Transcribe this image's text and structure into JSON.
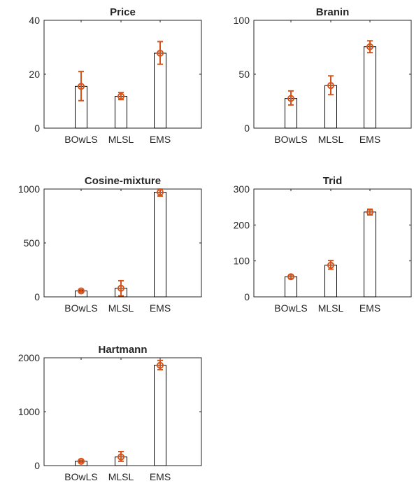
{
  "chart_data": [
    {
      "type": "bar",
      "title": "Price",
      "categories": [
        "BOwLS",
        "MLSL",
        "EMS"
      ],
      "values": [
        15.5,
        11.8,
        27.8
      ],
      "error_lower": [
        10.2,
        10.6,
        23.7
      ],
      "error_upper": [
        21.0,
        13.2,
        32.1
      ],
      "ylim": [
        0,
        40
      ],
      "yticks": [
        0,
        20,
        40
      ],
      "ytick_labels": [
        "0",
        "20",
        "40"
      ]
    },
    {
      "type": "bar",
      "title": "Branin",
      "categories": [
        "BOwLS",
        "MLSL",
        "EMS"
      ],
      "values": [
        27.5,
        39.5,
        75.5
      ],
      "error_lower": [
        21.5,
        31.0,
        70.0
      ],
      "error_upper": [
        34.5,
        48.5,
        81.0
      ],
      "ylim": [
        0,
        100
      ],
      "yticks": [
        0,
        50,
        100
      ],
      "ytick_labels": [
        "0",
        "50",
        "100"
      ]
    },
    {
      "type": "bar",
      "title": "Cosine-mixture",
      "categories": [
        "BOwLS",
        "MLSL",
        "EMS"
      ],
      "values": [
        55,
        80,
        970
      ],
      "error_lower": [
        45,
        10,
        935
      ],
      "error_upper": [
        65,
        150,
        1000
      ],
      "ylim": [
        0,
        1000
      ],
      "yticks": [
        0,
        500,
        1000
      ],
      "ytick_labels": [
        "0",
        "500",
        "1000"
      ]
    },
    {
      "type": "bar",
      "title": "Trid",
      "categories": [
        "BOwLS",
        "MLSL",
        "EMS"
      ],
      "values": [
        56,
        88,
        236
      ],
      "error_lower": [
        51,
        77,
        228
      ],
      "error_upper": [
        61,
        101,
        244
      ],
      "ylim": [
        0,
        300
      ],
      "yticks": [
        0,
        100,
        200,
        300
      ],
      "ytick_labels": [
        "0",
        "100",
        "200",
        "300"
      ]
    },
    {
      "type": "bar",
      "title": "Hartmann",
      "categories": [
        "BOwLS",
        "MLSL",
        "EMS"
      ],
      "values": [
        80,
        160,
        1860
      ],
      "error_lower": [
        60,
        80,
        1780
      ],
      "error_upper": [
        100,
        260,
        1950
      ],
      "ylim": [
        0,
        2000
      ],
      "yticks": [
        0,
        1000,
        2000
      ],
      "ytick_labels": [
        "0",
        "1000",
        "2000"
      ]
    }
  ],
  "colors": {
    "bar_fill": "#ffffff",
    "bar_edge": "#000000",
    "marker": "#d95319",
    "axes": "#262626"
  }
}
